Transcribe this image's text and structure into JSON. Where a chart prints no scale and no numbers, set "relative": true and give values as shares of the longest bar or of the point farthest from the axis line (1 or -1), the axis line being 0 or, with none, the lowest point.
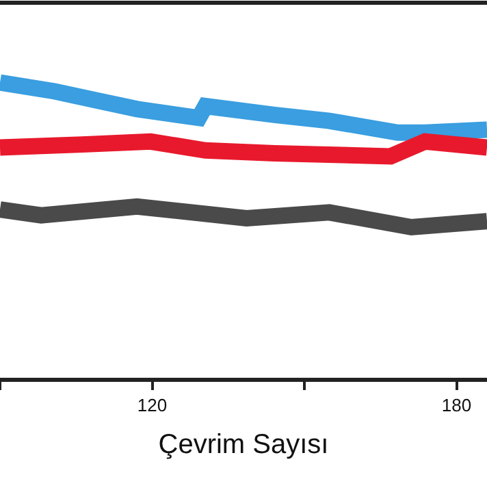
{
  "chart_data": {
    "type": "line",
    "xlabel": "Çevrim Sayısı",
    "relative": true,
    "xlim": [
      90,
      186
    ],
    "xticks": [
      {
        "value": 90,
        "label": null
      },
      120,
      {
        "value": 150,
        "label": null
      },
      180
    ],
    "marker": "none",
    "line_style": "solid",
    "series": [
      {
        "color": "#3a9ee0",
        "x": [
          90,
          100.8,
          108.9,
          117,
          129.2,
          130.5,
          144.1,
          154.9,
          168.4,
          173.8,
          186
        ],
        "values": [
          1,
          0.97,
          0.94,
          0.91,
          0.88,
          0.92,
          0.89,
          0.87,
          0.83,
          0.83,
          0.84
        ]
      },
      {
        "color": "#e8192c",
        "x": [
          90,
          106.2,
          119.7,
          130.5,
          144.1,
          167,
          173.8,
          186
        ],
        "values": [
          0.78,
          0.79,
          0.8,
          0.77,
          0.76,
          0.75,
          0.8,
          0.78
        ]
      },
      {
        "color": "#4a4a4a",
        "x": [
          90,
          98.1,
          117,
          138.6,
          154.9,
          171.1,
          186
        ],
        "values": [
          0.57,
          0.55,
          0.58,
          0.54,
          0.56,
          0.51,
          0.53
        ]
      }
    ]
  }
}
